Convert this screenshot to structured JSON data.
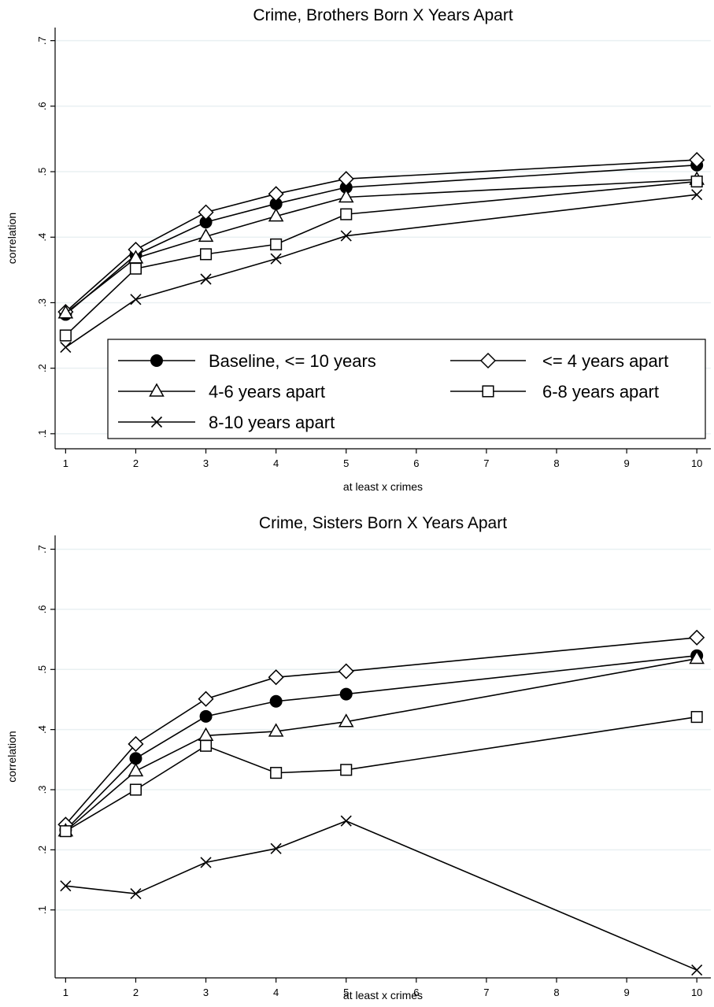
{
  "chart_data": [
    {
      "type": "line",
      "title": "Crime, Brothers Born X Years Apart",
      "xlabel": "at least x crimes",
      "ylabel": "correlation",
      "xticks": [
        1,
        2,
        3,
        4,
        5,
        6,
        7,
        8,
        9,
        10
      ],
      "xlim": [
        0.85,
        10.2
      ],
      "yticks": [
        0.1,
        0.2,
        0.3,
        0.4,
        0.5,
        0.6,
        0.7
      ],
      "ytick_labels": [
        ".1",
        ".2",
        ".3",
        ".4",
        ".5",
        ".6",
        ".7"
      ],
      "ylim": [
        0.077,
        0.72
      ],
      "grid": true,
      "legend": "lower-right",
      "x": [
        1,
        2,
        3,
        4,
        5,
        10
      ],
      "series": [
        {
          "name": "Baseline, <= 10 years",
          "marker": "circle",
          "values": [
            0.282,
            0.373,
            0.423,
            0.451,
            0.476,
            0.51
          ]
        },
        {
          "name": "<= 4 years apart",
          "marker": "diamond",
          "values": [
            0.286,
            0.381,
            0.438,
            0.466,
            0.489,
            0.518
          ]
        },
        {
          "name": "4-6 years apart",
          "marker": "triangle",
          "values": [
            0.284,
            0.368,
            0.401,
            0.432,
            0.461,
            0.488
          ]
        },
        {
          "name": "6-8 years apart",
          "marker": "square",
          "values": [
            0.25,
            0.352,
            0.374,
            0.389,
            0.435,
            0.485
          ]
        },
        {
          "name": "8-10 years apart",
          "marker": "x",
          "values": [
            0.232,
            0.305,
            0.336,
            0.367,
            0.402,
            0.465
          ]
        }
      ]
    },
    {
      "type": "line",
      "title": "Crime, Sisters Born X Years Apart",
      "xlabel": "at least x crimes",
      "ylabel": "correlation",
      "xticks": [
        1,
        2,
        3,
        4,
        5,
        6,
        7,
        8,
        9,
        10
      ],
      "xlim": [
        0.85,
        10.2
      ],
      "yticks": [
        0.1,
        0.2,
        0.3,
        0.4,
        0.5,
        0.6,
        0.7
      ],
      "ytick_labels": [
        ".1",
        ".2",
        ".3",
        ".4",
        ".5",
        ".6",
        ".7"
      ],
      "ylim": [
        -0.013,
        0.723
      ],
      "grid": true,
      "x": [
        1,
        2,
        3,
        4,
        5,
        10
      ],
      "series": [
        {
          "name": "Baseline, <= 10 years",
          "marker": "circle",
          "values": [
            0.233,
            0.352,
            0.422,
            0.447,
            0.459,
            0.523
          ]
        },
        {
          "name": "<= 4 years apart",
          "marker": "diamond",
          "values": [
            0.242,
            0.376,
            0.451,
            0.487,
            0.497,
            0.553
          ]
        },
        {
          "name": "4-6 years apart",
          "marker": "triangle",
          "values": [
            0.231,
            0.331,
            0.39,
            0.397,
            0.413,
            0.518
          ]
        },
        {
          "name": "6-8 years apart",
          "marker": "square",
          "values": [
            0.231,
            0.3,
            0.373,
            0.328,
            0.333,
            0.421
          ]
        },
        {
          "name": "8-10 years apart",
          "marker": "x",
          "values": [
            0.14,
            0.127,
            0.179,
            0.202,
            0.248,
            0.0
          ]
        }
      ]
    }
  ]
}
